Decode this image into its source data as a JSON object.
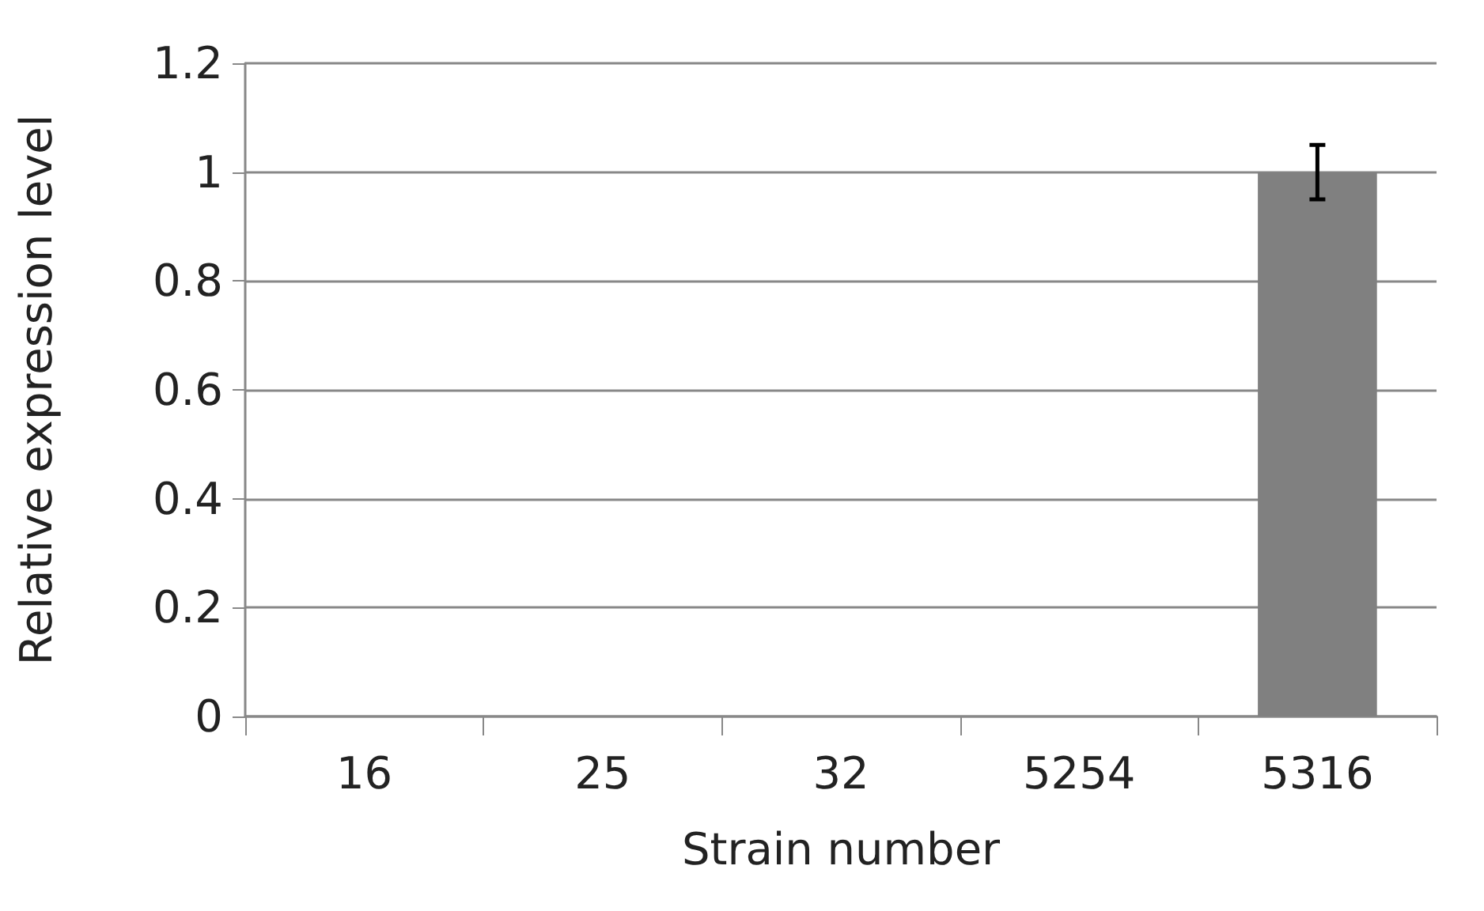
{
  "chart_data": {
    "type": "bar",
    "xlabel": "Strain number",
    "ylabel": "Relative expression level",
    "categories": [
      "16",
      "25",
      "32",
      "5254",
      "5316"
    ],
    "values": [
      0,
      0,
      0,
      0,
      1
    ],
    "errors": [
      null,
      null,
      null,
      null,
      0.05
    ],
    "color": "#808080",
    "ylim": [
      0,
      1.2
    ],
    "yticks": [
      0,
      0.2,
      0.4,
      0.6,
      0.8,
      1,
      1.2
    ],
    "grid": "y"
  }
}
